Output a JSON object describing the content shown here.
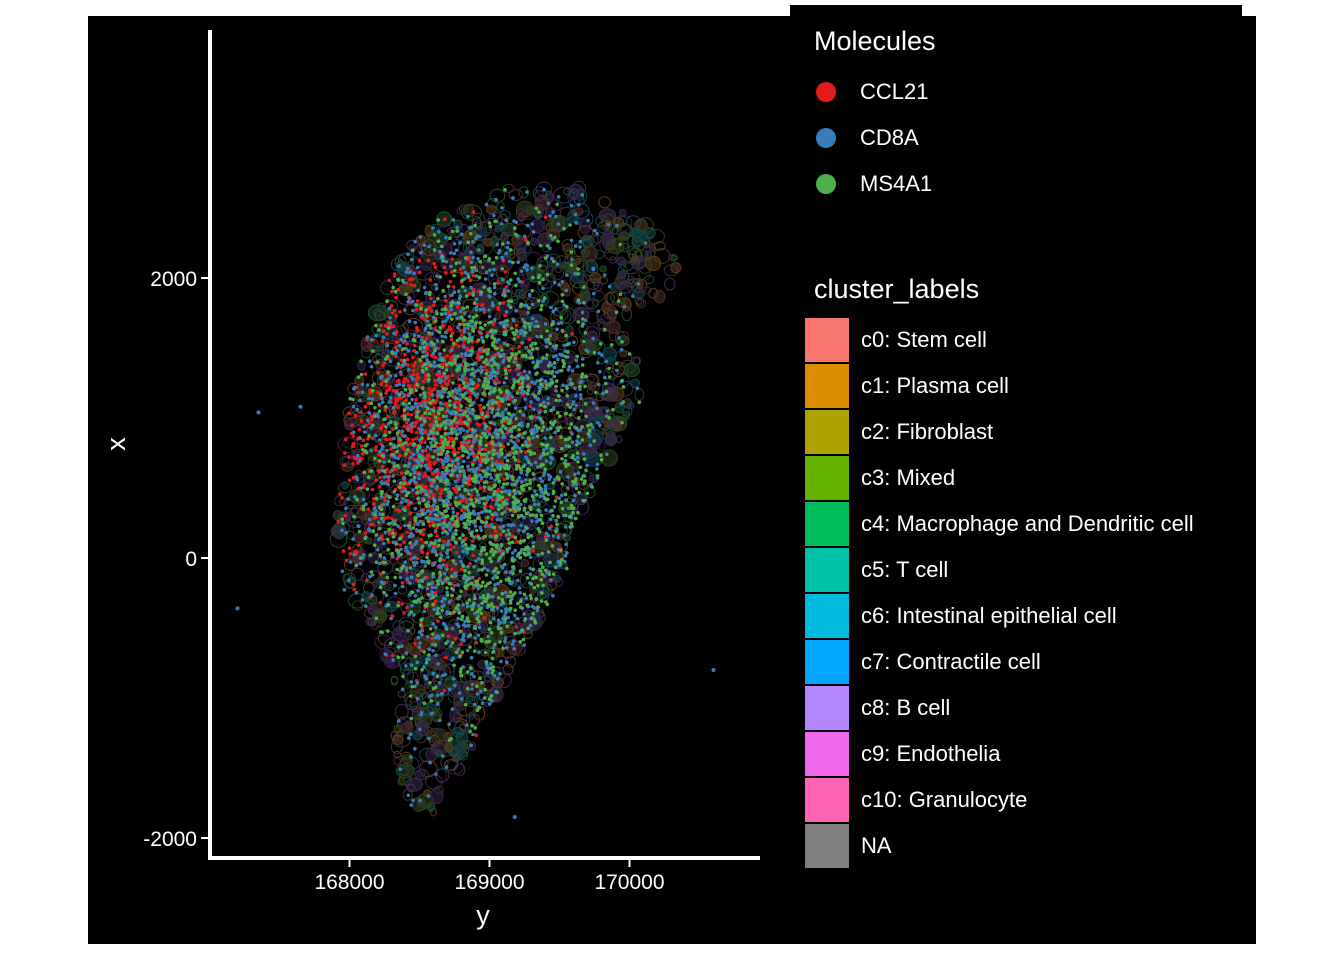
{
  "figure": {
    "background": "#000000",
    "page_background": "#ffffff"
  },
  "chart_data": {
    "type": "scatter",
    "title": "",
    "xlabel": "y",
    "ylabel": "x",
    "xlim": [
      167000,
      170900
    ],
    "ylim": [
      -2100,
      2650
    ],
    "x_ticks": [
      168000,
      169000,
      170000
    ],
    "x_tick_labels": [
      "168000",
      "169000",
      "170000"
    ],
    "y_ticks": [
      -2000,
      0,
      2000
    ],
    "y_tick_labels": [
      "-2000",
      "0",
      "2000"
    ],
    "grid": false,
    "axis_color": "#ffffff",
    "background": "#000000",
    "series": [
      {
        "name": "CCL21",
        "color": "#E41A1C",
        "count": 1200,
        "region": {
          "cx": 168600,
          "cy": 900,
          "sx": 330,
          "sy": 600
        }
      },
      {
        "name": "CD8A",
        "color": "#377EB8",
        "count": 1800,
        "region": {
          "cx": 168900,
          "cy": 700,
          "sx": 500,
          "sy": 1000
        }
      },
      {
        "name": "MS4A1",
        "color": "#4DAF4A",
        "count": 1400,
        "region": {
          "cx": 169000,
          "cy": 650,
          "sx": 480,
          "sy": 850
        }
      }
    ],
    "isolated_points": [
      {
        "x": 167350,
        "y": 1040,
        "series": "CD8A"
      },
      {
        "x": 167650,
        "y": 1080,
        "series": "CD8A"
      },
      {
        "x": 170600,
        "y": -800,
        "series": "CD8A"
      },
      {
        "x": 169180,
        "y": -1850,
        "series": "CD8A"
      },
      {
        "x": 167200,
        "y": -360,
        "series": "CD8A"
      }
    ],
    "tissue_outline": [
      [
        168800,
        2500
      ],
      [
        169150,
        2650
      ],
      [
        169650,
        2650
      ],
      [
        170050,
        2450
      ],
      [
        170350,
        2150
      ],
      [
        170300,
        1900
      ],
      [
        169900,
        1700
      ],
      [
        170050,
        1450
      ],
      [
        170100,
        1050
      ],
      [
        169850,
        700
      ],
      [
        169600,
        250
      ],
      [
        169550,
        -100
      ],
      [
        169350,
        -450
      ],
      [
        169100,
        -900
      ],
      [
        168900,
        -1300
      ],
      [
        168750,
        -1650
      ],
      [
        168600,
        -1850
      ],
      [
        168450,
        -1800
      ],
      [
        168300,
        -1450
      ],
      [
        168350,
        -1000
      ],
      [
        168200,
        -550
      ],
      [
        167950,
        -250
      ],
      [
        167900,
        200
      ],
      [
        167950,
        650
      ],
      [
        168000,
        1150
      ],
      [
        168150,
        1650
      ],
      [
        168350,
        2150
      ],
      [
        168600,
        2400
      ]
    ],
    "outline_colors": [
      "#5a3a1a",
      "#3e2a52",
      "#1f4a2a",
      "#13434a",
      "#4a2a2a",
      "#2f3e1a",
      "#35204a"
    ],
    "legends": {
      "molecules": {
        "title": "Molecules",
        "items": [
          {
            "label": "CCL21",
            "color": "#E41A1C"
          },
          {
            "label": "CD8A",
            "color": "#377EB8"
          },
          {
            "label": "MS4A1",
            "color": "#4DAF4A"
          }
        ]
      },
      "cluster_labels": {
        "title": "cluster_labels",
        "items": [
          {
            "label": "c0: Stem cell",
            "color": "#F8766D"
          },
          {
            "label": "c1: Plasma cell",
            "color": "#DB8E00"
          },
          {
            "label": "c2: Fibroblast",
            "color": "#AEA200"
          },
          {
            "label": "c3: Mixed",
            "color": "#64B200"
          },
          {
            "label": "c4: Macrophage and Dendritic cell",
            "color": "#00BD5C"
          },
          {
            "label": "c5: T cell",
            "color": "#00C1A7"
          },
          {
            "label": "c6: Intestinal epithelial cell",
            "color": "#00BADE"
          },
          {
            "label": "c7: Contractile cell",
            "color": "#00A6FF"
          },
          {
            "label": "c8: B cell",
            "color": "#B385FF"
          },
          {
            "label": "c9: Endothelia",
            "color": "#EF67EB"
          },
          {
            "label": "c10: Granulocyte",
            "color": "#FF63B6"
          },
          {
            "label": "NA",
            "color": "#7F7F7F"
          }
        ]
      }
    }
  }
}
